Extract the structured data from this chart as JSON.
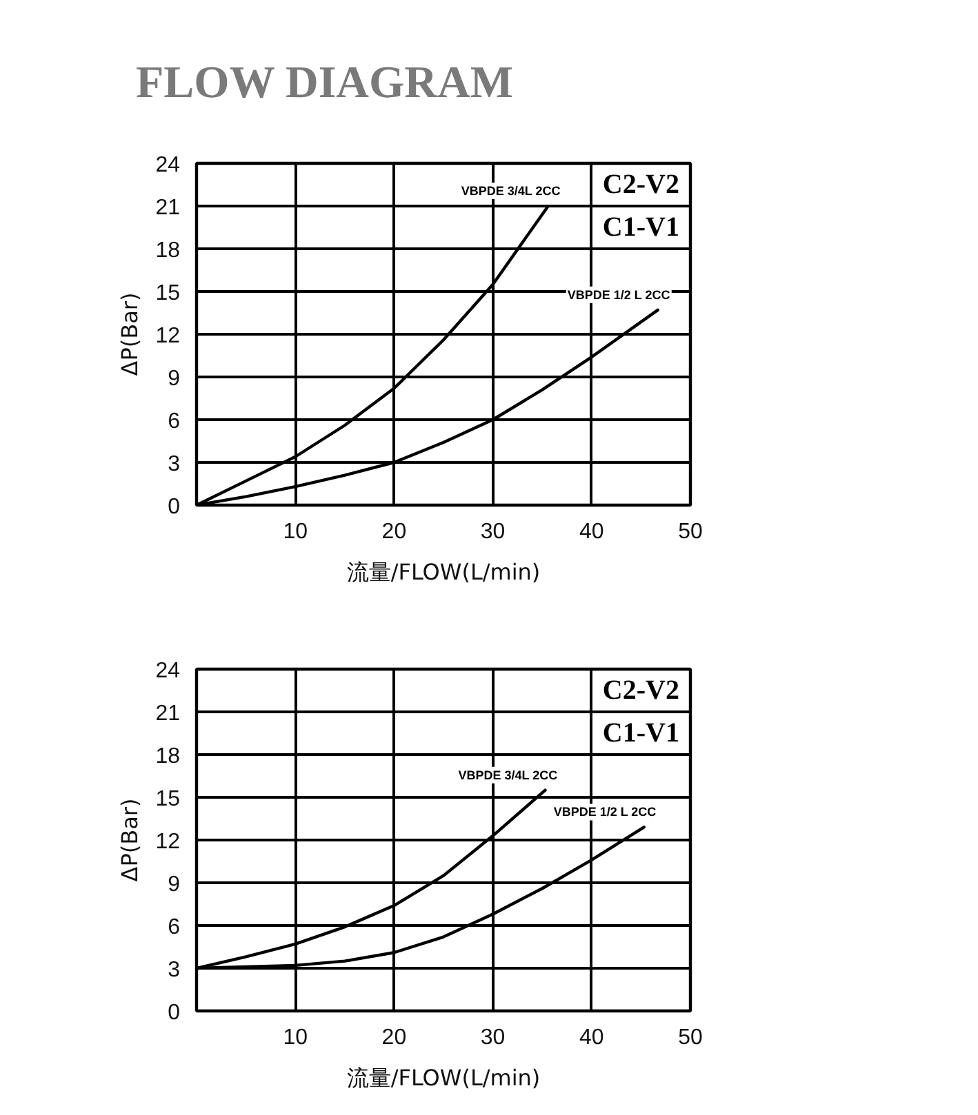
{
  "chart_data": [
    {
      "type": "line",
      "title": "FLOW DIAGRAM",
      "xlabel": "流量/FLOW(L/min)",
      "ylabel": "ΔP(Bar)",
      "annotations": [
        "C2-V2",
        "C1-V1"
      ],
      "xlim": [
        0,
        50
      ],
      "ylim": [
        0,
        24
      ],
      "xticks": [
        10,
        20,
        30,
        40,
        50
      ],
      "yticks": [
        0,
        3,
        6,
        9,
        12,
        15,
        18,
        21,
        24
      ],
      "grid": true,
      "series": [
        {
          "name": "VBPDE 3/4L 2CC",
          "color": "#000000",
          "x": [
            0,
            5,
            10,
            15,
            20,
            25,
            30,
            35.6
          ],
          "values": [
            0,
            1.7,
            3.4,
            5.6,
            8.2,
            11.6,
            15.5,
            21
          ]
        },
        {
          "name": "VBPDE 1/2 L 2CC",
          "color": "#000000",
          "x": [
            0,
            5,
            10,
            15,
            20,
            25,
            30,
            35,
            40,
            46.7
          ],
          "values": [
            0,
            0.6,
            1.3,
            2.1,
            3.0,
            4.4,
            6.0,
            8.1,
            10.4,
            13.7
          ]
        }
      ]
    },
    {
      "type": "line",
      "xlabel": "流量/FLOW(L/min)",
      "ylabel": "ΔP(Bar)",
      "annotations": [
        "C2-V2",
        "C1-V1"
      ],
      "xlim": [
        0,
        50
      ],
      "ylim": [
        0,
        24
      ],
      "xticks": [
        10,
        20,
        30,
        40,
        50
      ],
      "yticks": [
        0,
        3,
        6,
        9,
        12,
        15,
        18,
        21,
        24
      ],
      "grid": true,
      "series": [
        {
          "name": "VBPDE 3/4L 2CC",
          "color": "#000000",
          "x": [
            0,
            5,
            10,
            15,
            20,
            25,
            30,
            35.3
          ],
          "values": [
            3,
            3.8,
            4.7,
            5.9,
            7.4,
            9.5,
            12.3,
            15.5
          ]
        },
        {
          "name": "VBPDE 1/2 L 2CC",
          "color": "#000000",
          "x": [
            0,
            5,
            10,
            15,
            20,
            25,
            30,
            35,
            40,
            45.3
          ],
          "values": [
            3,
            3.1,
            3.2,
            3.5,
            4.1,
            5.2,
            6.8,
            8.6,
            10.6,
            12.9
          ]
        }
      ]
    }
  ]
}
